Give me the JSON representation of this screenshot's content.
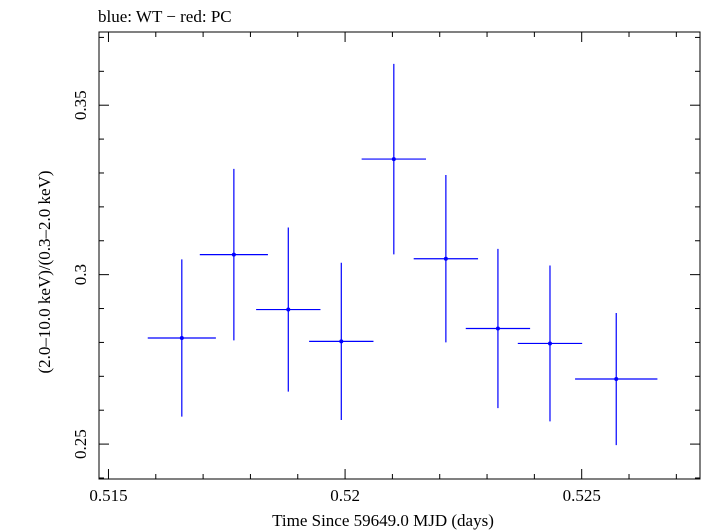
{
  "chart_data": {
    "type": "scatter",
    "title": "blue: WT − red: PC",
    "xlabel": "Time Since 59649.0 MJD (days)",
    "ylabel": "(2.0–10.0 keV)/(0.3–2.0 keV)",
    "xlim": [
      0.5148,
      0.5275
    ],
    "ylim": [
      0.2397,
      0.3716
    ],
    "x_ticks": [
      0.515,
      0.52,
      0.525
    ],
    "x_tick_labels": [
      "0.515",
      "0.52",
      "0.525"
    ],
    "y_ticks": [
      0.25,
      0.3,
      0.35
    ],
    "y_tick_labels": [
      "0.25",
      "0.3",
      "0.35"
    ],
    "grid": false,
    "series": [
      {
        "color": "#0000ff",
        "points": [
          {
            "x": 0.51655,
            "y": 0.2813,
            "xerr": 0.00072,
            "yerr": 0.0232
          },
          {
            "x": 0.51765,
            "y": 0.3059,
            "xerr": 0.00072,
            "yerr": 0.0253
          },
          {
            "x": 0.5188,
            "y": 0.2897,
            "xerr": 0.00068,
            "yerr": 0.0242
          },
          {
            "x": 0.51992,
            "y": 0.2803,
            "xerr": 0.00068,
            "yerr": 0.0232
          },
          {
            "x": 0.52103,
            "y": 0.3341,
            "xerr": 0.00068,
            "yerr": 0.0281
          },
          {
            "x": 0.52213,
            "y": 0.3047,
            "xerr": 0.00068,
            "yerr": 0.0247
          },
          {
            "x": 0.52323,
            "y": 0.2841,
            "xerr": 0.00068,
            "yerr": 0.0235
          },
          {
            "x": 0.52433,
            "y": 0.2797,
            "xerr": 0.00068,
            "yerr": 0.023
          },
          {
            "x": 0.52573,
            "y": 0.2692,
            "xerr": 0.00087,
            "yerr": 0.0195
          }
        ]
      }
    ]
  }
}
